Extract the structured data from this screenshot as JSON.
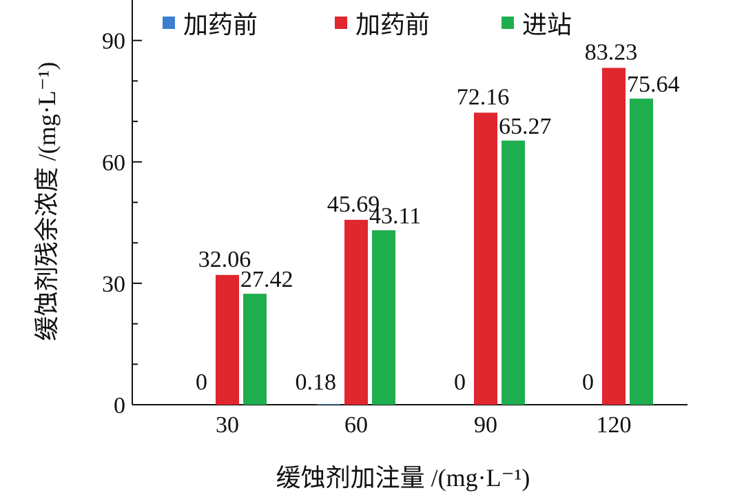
{
  "chart_data": {
    "type": "bar",
    "categories": [
      "30",
      "60",
      "90",
      "120"
    ],
    "series": [
      {
        "name": "加药前",
        "color": "#3b7fd0",
        "values": [
          0,
          0.18,
          0,
          0
        ],
        "labels": [
          "0",
          "0.18",
          "0",
          "0"
        ]
      },
      {
        "name": "加药前",
        "color": "#e0262e",
        "values": [
          32.06,
          45.69,
          72.16,
          83.23
        ],
        "labels": [
          "32.06",
          "45.69",
          "72.16",
          "83.23"
        ]
      },
      {
        "name": "进站",
        "color": "#1fae4e",
        "values": [
          27.42,
          43.11,
          65.27,
          75.64
        ],
        "labels": [
          "27.42",
          "43.11",
          "65.27",
          "75.64"
        ]
      }
    ],
    "xlabel": "缓蚀剂加注量 /(mg·L⁻¹)",
    "ylabel": "缓蚀剂残余浓度 /(mg·L⁻¹)",
    "ylim": [
      0,
      100
    ],
    "yticks": [
      "0",
      "30",
      "60",
      "90"
    ],
    "grid": false,
    "legend_position": "top"
  }
}
